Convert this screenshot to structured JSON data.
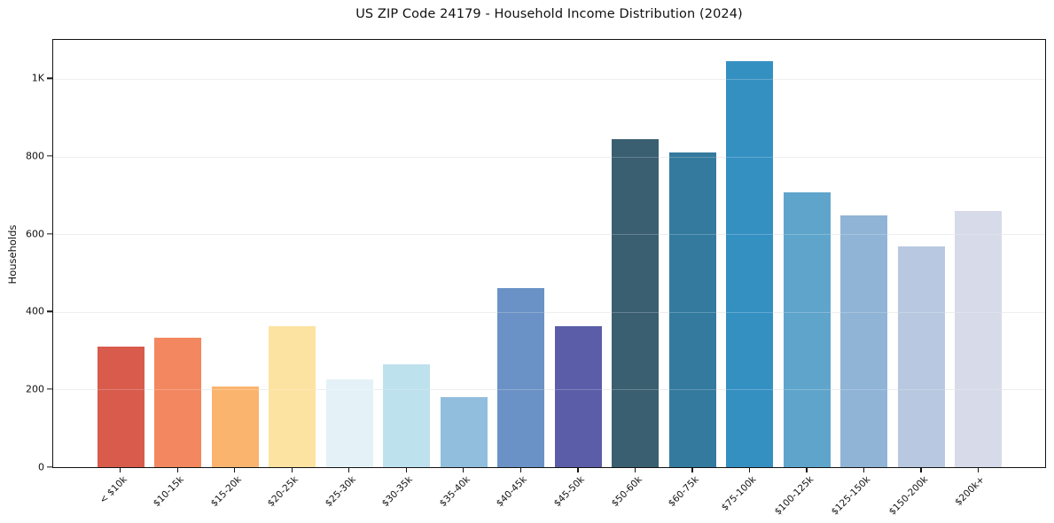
{
  "chart_data": {
    "type": "bar",
    "title": "US ZIP Code 24179 - Household Income Distribution (2024)",
    "xlabel": "",
    "ylabel": "Households",
    "categories": [
      "< $10k",
      "$10-15k",
      "$15-20k",
      "$20-25k",
      "$25-30k",
      "$30-35k",
      "$35-40k",
      "$40-45k",
      "$45-50k",
      "$50-60k",
      "$60-75k",
      "$75-100k",
      "$100-125k",
      "$125-150k",
      "$150-200k",
      "$200k+"
    ],
    "values": [
      314,
      336,
      211,
      367,
      229,
      268,
      184,
      465,
      366,
      848,
      814,
      1050,
      711,
      651,
      572,
      663
    ],
    "bar_colors": [
      "#d85b4c",
      "#f3875f",
      "#fab46e",
      "#fde3a1",
      "#e4f2f7",
      "#bee1ee",
      "#91bedd",
      "#6b92c6",
      "#5b5da9",
      "#3a5f71",
      "#347a9f",
      "#3590c2",
      "#5fa5cb",
      "#8fb4d6",
      "#b8c8e0",
      "#d7dae8"
    ],
    "ylim": [
      0,
      1105
    ],
    "yticks": {
      "values": [
        0,
        200,
        400,
        600,
        800,
        1000
      ],
      "labels": [
        "0",
        "200",
        "400",
        "600",
        "800",
        "1K"
      ]
    },
    "grid": "horizontal",
    "grid_color": "#e9e9e9",
    "legend": "none",
    "background_color": "#ffffff",
    "spine_color": "#131313"
  }
}
